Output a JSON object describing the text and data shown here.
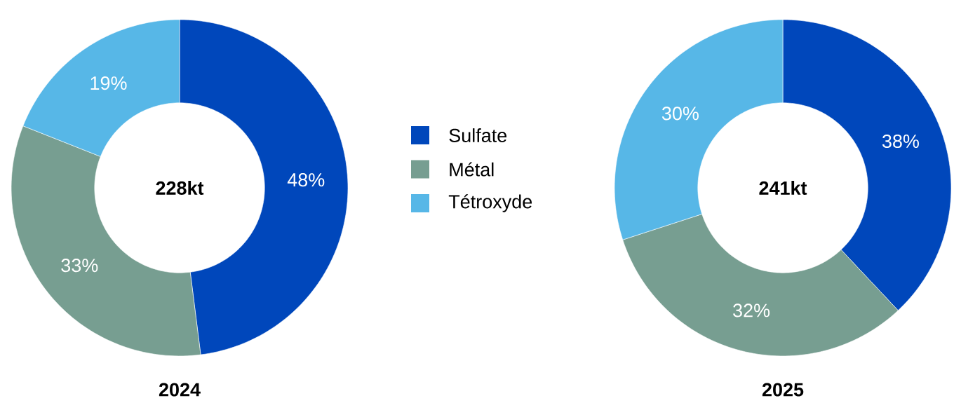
{
  "chart_data": [
    {
      "type": "donut",
      "title": "2024",
      "categories": [
        "Sulfate",
        "Métal",
        "Tétroxyde"
      ],
      "values": [
        48,
        33,
        19
      ],
      "value_labels": [
        "48%",
        "33%",
        "19%"
      ],
      "colors": [
        "#0047bb",
        "#779e91",
        "#57b7e7"
      ],
      "annotations": [
        "228kt"
      ],
      "legend": "right"
    },
    {
      "type": "donut",
      "title": "2025",
      "categories": [
        null,
        null,
        null
      ],
      "values": [
        38,
        32,
        30
      ],
      "value_labels": [
        "38%",
        "32%",
        "30%"
      ],
      "colors": [
        "#0047bb",
        "#779e91",
        "#57b7e7"
      ],
      "annotations": [
        "241kt"
      ]
    }
  ]
}
